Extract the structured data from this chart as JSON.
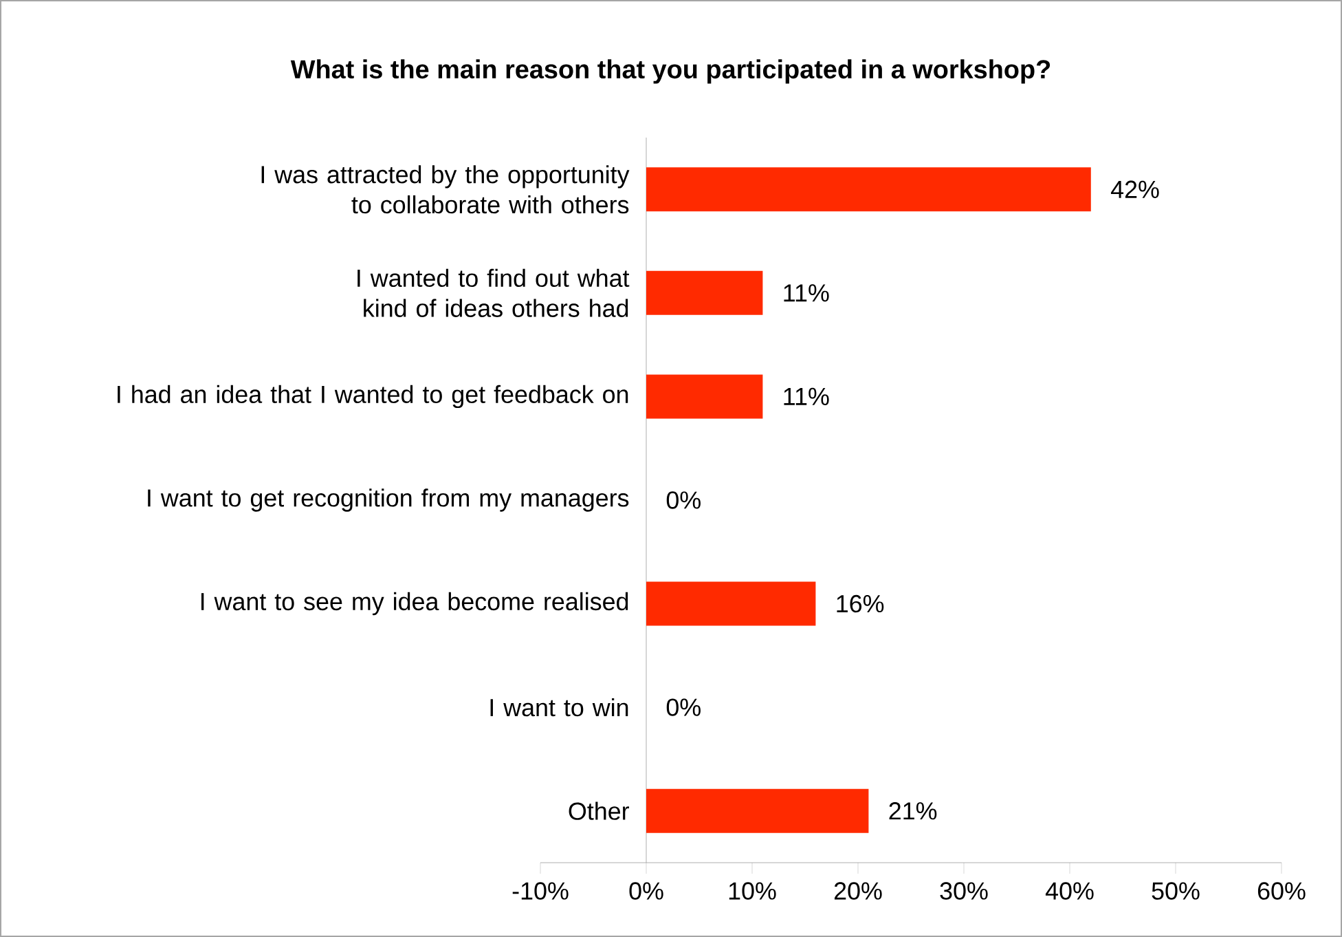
{
  "chart_data": {
    "type": "bar",
    "orientation": "horizontal",
    "title": "What is the main reason that you participated in a workshop?",
    "categories": [
      "I was attracted by the opportunity to collaborate with others",
      "I wanted to find out what kind of ideas others had",
      "I had an idea that I wanted to get feedback on",
      "I want to get recognition from my managers",
      "I want to see my idea become realised",
      "I want to win",
      "Other"
    ],
    "values": [
      42,
      11,
      11,
      0,
      16,
      0,
      21
    ],
    "value_labels": [
      "42%",
      "11%",
      "11%",
      "0%",
      "16%",
      "0%",
      "21%"
    ],
    "color": "#ff2a00",
    "xlim": [
      -10,
      60
    ],
    "xticks": [
      {
        "value": -10,
        "label": "-10%"
      },
      {
        "value": 0,
        "label": "0%"
      },
      {
        "value": 10,
        "label": "10%"
      },
      {
        "value": 20,
        "label": "20%"
      },
      {
        "value": 30,
        "label": "30%"
      },
      {
        "value": 40,
        "label": "40%"
      },
      {
        "value": 50,
        "label": "50%"
      },
      {
        "value": 60,
        "label": "60%"
      }
    ],
    "grid": false
  }
}
